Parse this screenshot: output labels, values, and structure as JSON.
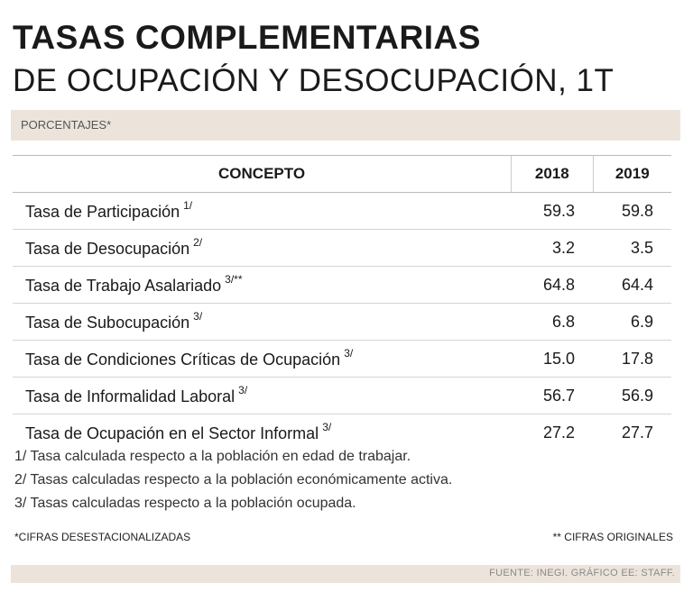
{
  "header": {
    "title_line1": "TASAS COMPLEMENTARIAS",
    "title_line2": "DE OCUPACIÓN Y DESOCUPACIÓN, 1T",
    "unit_label": "PORCENTAJES*"
  },
  "chart_data": {
    "type": "table",
    "columns": [
      "CONCEPTO",
      "2018",
      "2019"
    ],
    "rows": [
      {
        "label": "Tasa de Participación",
        "note": "1/",
        "values": [
          "59.3",
          "59.8"
        ]
      },
      {
        "label": "Tasa de Desocupación",
        "note": "2/",
        "values": [
          "3.2",
          "3.5"
        ]
      },
      {
        "label": "Tasa de Trabajo Asalariado",
        "note": "3/**",
        "values": [
          "64.8",
          "64.4"
        ]
      },
      {
        "label": "Tasa de Subocupación",
        "note": "3/",
        "values": [
          "6.8",
          "6.9"
        ]
      },
      {
        "label": "Tasa de Condiciones Críticas de Ocupación",
        "note": "3/",
        "values": [
          "15.0",
          "17.8"
        ]
      },
      {
        "label": "Tasa de Informalidad Laboral",
        "note": "3/",
        "values": [
          "56.7",
          "56.9"
        ]
      },
      {
        "label": "Tasa de Ocupación en el Sector Informal",
        "note": "3/",
        "values": [
          "27.2",
          "27.7"
        ]
      }
    ]
  },
  "footnotes": [
    "1/ Tasa calculada respecto a la población en edad de trabajar.",
    "2/ Tasas calculadas respecto a la población económicamente activa.",
    "3/ Tasas calculadas respecto a la población ocupada."
  ],
  "legend": {
    "left": "*CIFRAS DESESTACIONALIZADAS",
    "right": "** CIFRAS ORIGINALES"
  },
  "source": "FUENTE: INEGI. GRÁFICO EE: STAFF.",
  "colors": {
    "band": "#ece4db",
    "text": "#1a1a1a",
    "rule": "#d4d4d4"
  }
}
